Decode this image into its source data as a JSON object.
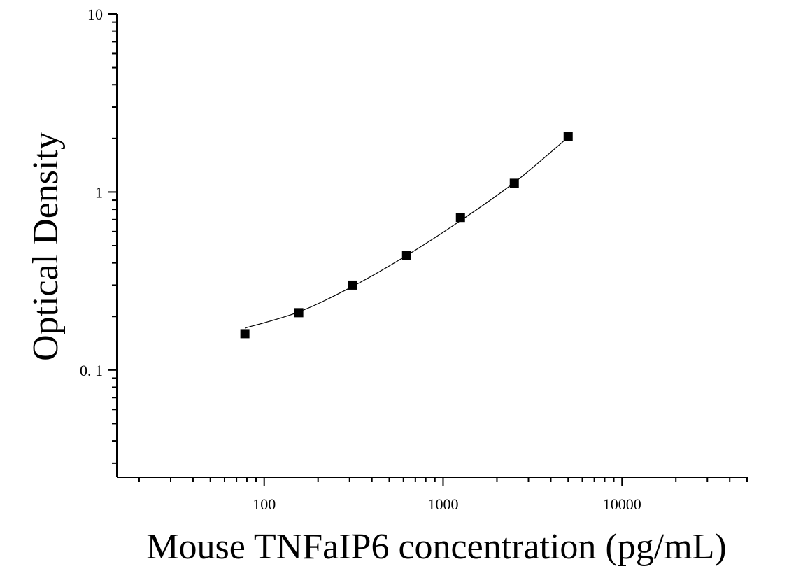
{
  "chart_data": {
    "type": "scatter",
    "title": "",
    "xlabel": "Mouse TNFaIP6 concentration (pg/mL)",
    "ylabel": "Optical Density",
    "xscale": "log",
    "yscale": "log",
    "xlim": [
      15,
      50000
    ],
    "ylim": [
      0.025,
      10
    ],
    "x_ticks": [
      {
        "value": 100,
        "label": "100"
      },
      {
        "value": 1000,
        "label": "1000"
      },
      {
        "value": 10000,
        "label": "10000"
      }
    ],
    "y_ticks": [
      {
        "value": 10,
        "label": "10"
      },
      {
        "value": 1,
        "label": "1"
      },
      {
        "value": 0.1,
        "label": "0. 1"
      }
    ],
    "grid": false,
    "legend": "none",
    "colors": {
      "points": "#000000",
      "curve": "#000000",
      "axes": "#000000"
    },
    "marker": "square",
    "series": [
      {
        "x": [
          78,
          156,
          312,
          625,
          1250,
          2500,
          5000
        ],
        "y": [
          0.16,
          0.21,
          0.3,
          0.44,
          0.72,
          1.12,
          2.05
        ]
      }
    ],
    "fit_curve": {
      "x": [
        78,
        156,
        312,
        625,
        1250,
        2500,
        5000
      ],
      "y": [
        0.172,
        0.212,
        0.295,
        0.44,
        0.69,
        1.13,
        2.03
      ]
    }
  }
}
